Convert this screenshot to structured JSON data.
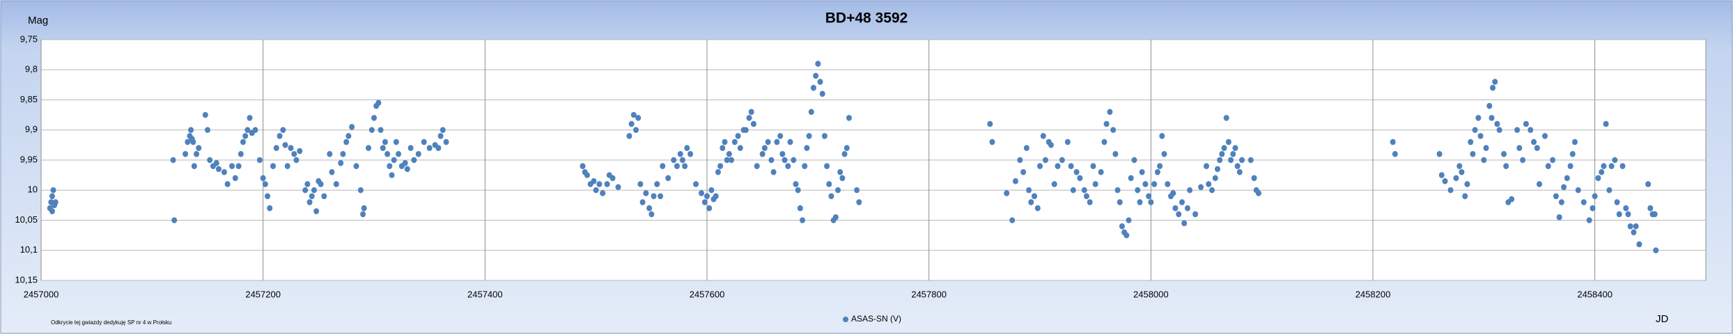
{
  "chart_data": {
    "type": "scatter",
    "title": "BD+48 3592",
    "y_label": "Mag",
    "x_label": "JD",
    "footnote": "Odkrycie tej gwiazdy dedykuję SP nr 4 w Prołsku",
    "xlim": [
      2457000,
      2458500
    ],
    "xticks": [
      2457000,
      2457200,
      2457400,
      2457600,
      2457800,
      2458000,
      2458200,
      2458400
    ],
    "ylim": [
      10.15,
      9.75
    ],
    "yticks": [
      {
        "value": 9.75,
        "label": "9,75"
      },
      {
        "value": 9.8,
        "label": "9,8"
      },
      {
        "value": 9.85,
        "label": "9,85"
      },
      {
        "value": 9.9,
        "label": "9,9"
      },
      {
        "value": 9.95,
        "label": "9,95"
      },
      10,
      {
        "value": 10.05,
        "label": "10,05"
      },
      {
        "value": 10.1,
        "label": "10,1"
      },
      {
        "value": 10.15,
        "label": "10,15"
      }
    ],
    "grid": true,
    "legend": "bottom",
    "x": [
      2457008,
      2457009,
      2457010,
      2457011,
      2457012,
      2457010,
      2457013,
      2457119,
      2457120,
      2457130,
      2457132,
      2457134,
      2457135,
      2457136,
      2457137,
      2457138,
      2457140,
      2457142,
      2457148,
      2457150,
      2457152,
      2457155,
      2457158,
      2457160,
      2457165,
      2457168,
      2457172,
      2457175,
      2457178,
      2457180,
      2457182,
      2457184,
      2457186,
      2457188,
      2457190,
      2457193,
      2457197,
      2457200,
      2457202,
      2457204,
      2457206,
      2457209,
      2457212,
      2457215,
      2457218,
      2457220,
      2457222,
      2457225,
      2457228,
      2457230,
      2457233,
      2457238,
      2457240,
      2457242,
      2457244,
      2457246,
      2457248,
      2457250,
      2457252,
      2457255,
      2457260,
      2457262,
      2457266,
      2457270,
      2457272,
      2457275,
      2457277,
      2457280,
      2457284,
      2457288,
      2457290,
      2457291,
      2457295,
      2457298,
      2457300,
      2457302,
      2457304,
      2457306,
      2457308,
      2457310,
      2457312,
      2457314,
      2457316,
      2457318,
      2457320,
      2457322,
      2457325,
      2457328,
      2457330,
      2457333,
      2457336,
      2457340,
      2457345,
      2457350,
      2457355,
      2457358,
      2457360,
      2457362,
      2457365,
      2457488,
      2457490,
      2457492,
      2457495,
      2457498,
      2457500,
      2457503,
      2457506,
      2457510,
      2457512,
      2457515,
      2457520,
      2457530,
      2457532,
      2457534,
      2457536,
      2457538,
      2457540,
      2457542,
      2457545,
      2457548,
      2457550,
      2457552,
      2457555,
      2457558,
      2457560,
      2457565,
      2457570,
      2457573,
      2457576,
      2457578,
      2457580,
      2457582,
      2457585,
      2457590,
      2457595,
      2457598,
      2457600,
      2457602,
      2457604,
      2457606,
      2457608,
      2457610,
      2457612,
      2457614,
      2457616,
      2457618,
      2457620,
      2457622,
      2457625,
      2457628,
      2457630,
      2457633,
      2457635,
      2457638,
      2457640,
      2457642,
      2457645,
      2457650,
      2457652,
      2457655,
      2457658,
      2457660,
      2457663,
      2457666,
      2457668,
      2457670,
      2457673,
      2457675,
      2457678,
      2457680,
      2457682,
      2457684,
      2457686,
      2457688,
      2457690,
      2457692,
      2457694,
      2457696,
      2457698,
      2457700,
      2457702,
      2457704,
      2457706,
      2457708,
      2457710,
      2457712,
      2457714,
      2457716,
      2457718,
      2457720,
      2457722,
      2457724,
      2457726,
      2457728,
      2457735,
      2457737,
      2457855,
      2457857,
      2457870,
      2457875,
      2457878,
      2457882,
      2457885,
      2457888,
      2457890,
      2457892,
      2457895,
      2457898,
      2457900,
      2457903,
      2457905,
      2457908,
      2457910,
      2457913,
      2457916,
      2457920,
      2457925,
      2457928,
      2457930,
      2457933,
      2457936,
      2457940,
      2457942,
      2457945,
      2457948,
      2457950,
      2457955,
      2457958,
      2457960,
      2457963,
      2457966,
      2457968,
      2457970,
      2457972,
      2457974,
      2457976,
      2457978,
      2457980,
      2457982,
      2457985,
      2457988,
      2457990,
      2457992,
      2457995,
      2457998,
      2458000,
      2458003,
      2458006,
      2458008,
      2458010,
      2458012,
      2458015,
      2458018,
      2458020,
      2458022,
      2458025,
      2458028,
      2458030,
      2458033,
      2458035,
      2458040,
      2458045,
      2458050,
      2458052,
      2458055,
      2458058,
      2458060,
      2458062,
      2458064,
      2458066,
      2458068,
      2458070,
      2458072,
      2458074,
      2458076,
      2458078,
      2458080,
      2458082,
      2458090,
      2458093,
      2458095,
      2458097,
      2458218,
      2458220,
      2458260,
      2458262,
      2458265,
      2458270,
      2458275,
      2458278,
      2458280,
      2458283,
      2458285,
      2458288,
      2458290,
      2458292,
      2458295,
      2458297,
      2458300,
      2458302,
      2458305,
      2458307,
      2458308,
      2458310,
      2458312,
      2458314,
      2458318,
      2458320,
      2458322,
      2458325,
      2458330,
      2458332,
      2458335,
      2458338,
      2458342,
      2458345,
      2458348,
      2458350,
      2458355,
      2458358,
      2458362,
      2458365,
      2458368,
      2458370,
      2458372,
      2458375,
      2458378,
      2458380,
      2458382,
      2458385,
      2458390,
      2458395,
      2458398,
      2458400,
      2458403,
      2458406,
      2458408,
      2458410,
      2458413,
      2458415,
      2458418,
      2458420,
      2458422,
      2458425,
      2458428,
      2458430,
      2458432,
      2458435,
      2458437,
      2458440,
      2458448,
      2458450,
      2458452,
      2458454,
      2458455
    ],
    "series": [
      {
        "name": "ASAS-SN (V)",
        "color": "#4f81bd",
        "values": [
          10.03,
          10.02,
          10.01,
          10.0,
          10.025,
          10.035,
          10.02,
          9.95,
          10.05,
          9.94,
          9.92,
          9.91,
          9.9,
          9.915,
          9.92,
          9.96,
          9.94,
          9.93,
          9.875,
          9.9,
          9.95,
          9.96,
          9.955,
          9.965,
          9.97,
          9.99,
          9.96,
          9.98,
          9.96,
          9.94,
          9.92,
          9.91,
          9.9,
          9.88,
          9.905,
          9.9,
          9.95,
          9.98,
          9.99,
          10.01,
          10.03,
          9.96,
          9.93,
          9.91,
          9.9,
          9.925,
          9.96,
          9.93,
          9.94,
          9.95,
          9.935,
          10.0,
          9.99,
          10.02,
          10.01,
          10.0,
          10.035,
          9.985,
          9.99,
          10.01,
          9.94,
          9.97,
          9.99,
          9.955,
          9.94,
          9.92,
          9.91,
          9.895,
          9.96,
          10.0,
          10.04,
          10.03,
          9.93,
          9.9,
          9.88,
          9.86,
          9.855,
          9.9,
          9.93,
          9.92,
          9.94,
          9.96,
          9.975,
          9.95,
          9.92,
          9.94,
          9.96,
          9.955,
          9.965,
          9.93,
          9.95,
          9.94,
          9.92,
          9.93,
          9.925,
          9.93,
          9.91,
          9.9,
          9.92,
          9.96,
          9.97,
          9.975,
          9.99,
          9.985,
          10.0,
          9.99,
          10.005,
          9.99,
          9.975,
          9.98,
          9.995,
          9.91,
          9.89,
          9.875,
          9.9,
          9.88,
          9.99,
          10.02,
          10.005,
          10.03,
          10.04,
          10.01,
          9.99,
          10.01,
          9.96,
          9.98,
          9.95,
          9.96,
          9.94,
          9.95,
          9.96,
          9.93,
          9.94,
          9.99,
          10.005,
          10.02,
          10.01,
          10.03,
          10.0,
          10.015,
          10.01,
          9.97,
          9.96,
          9.93,
          9.92,
          9.95,
          9.94,
          9.95,
          9.92,
          9.91,
          9.93,
          9.9,
          9.9,
          9.88,
          9.87,
          9.89,
          9.96,
          9.94,
          9.93,
          9.92,
          9.95,
          9.97,
          9.92,
          9.91,
          9.94,
          9.95,
          9.96,
          9.92,
          9.95,
          9.99,
          10.0,
          10.03,
          10.05,
          9.96,
          9.93,
          9.91,
          9.87,
          9.83,
          9.81,
          9.79,
          9.82,
          9.84,
          9.91,
          9.96,
          9.99,
          10.01,
          10.05,
          10.045,
          10.0,
          9.97,
          9.98,
          9.94,
          9.93,
          9.88,
          10.0,
          10.02,
          9.89,
          9.92,
          10.005,
          10.05,
          9.985,
          9.95,
          9.97,
          9.93,
          10.0,
          10.02,
          10.01,
          10.03,
          9.96,
          9.91,
          9.95,
          9.92,
          9.925,
          9.99,
          9.96,
          9.95,
          9.92,
          9.96,
          10.0,
          9.97,
          9.98,
          10.0,
          10.01,
          10.02,
          9.96,
          9.99,
          9.97,
          9.92,
          9.89,
          9.87,
          9.9,
          9.94,
          10.0,
          10.02,
          10.06,
          10.07,
          10.075,
          10.05,
          9.98,
          9.95,
          10.0,
          10.02,
          9.97,
          9.99,
          10.01,
          10.02,
          9.99,
          9.97,
          9.96,
          9.91,
          9.94,
          9.99,
          10.01,
          10.005,
          10.03,
          10.04,
          10.02,
          10.055,
          10.03,
          10.0,
          10.04,
          9.995,
          9.96,
          9.99,
          10.0,
          9.98,
          9.965,
          9.95,
          9.94,
          9.93,
          9.88,
          9.92,
          9.95,
          9.94,
          9.93,
          9.96,
          9.97,
          9.95,
          9.95,
          9.98,
          10.0,
          10.005,
          9.92,
          9.94,
          9.94,
          9.975,
          9.985,
          10.0,
          9.98,
          9.96,
          9.97,
          10.01,
          9.99,
          9.92,
          9.94,
          9.9,
          9.88,
          9.91,
          9.95,
          9.93,
          9.86,
          9.88,
          9.83,
          9.82,
          9.89,
          9.9,
          9.94,
          9.96,
          10.02,
          10.015,
          9.9,
          9.93,
          9.95,
          9.89,
          9.9,
          9.92,
          9.93,
          9.99,
          9.91,
          9.96,
          9.95,
          10.01,
          10.045,
          10.02,
          9.995,
          9.98,
          9.96,
          9.94,
          9.92,
          10.0,
          10.02,
          10.05,
          10.03,
          10.01,
          9.98,
          9.97,
          9.96,
          9.89,
          10.0,
          9.96,
          9.95,
          10.02,
          10.04,
          9.96,
          10.03,
          10.04,
          10.06,
          10.07,
          10.06,
          10.09,
          9.99,
          10.03,
          10.04,
          10.04,
          10.1
        ]
      }
    ]
  }
}
